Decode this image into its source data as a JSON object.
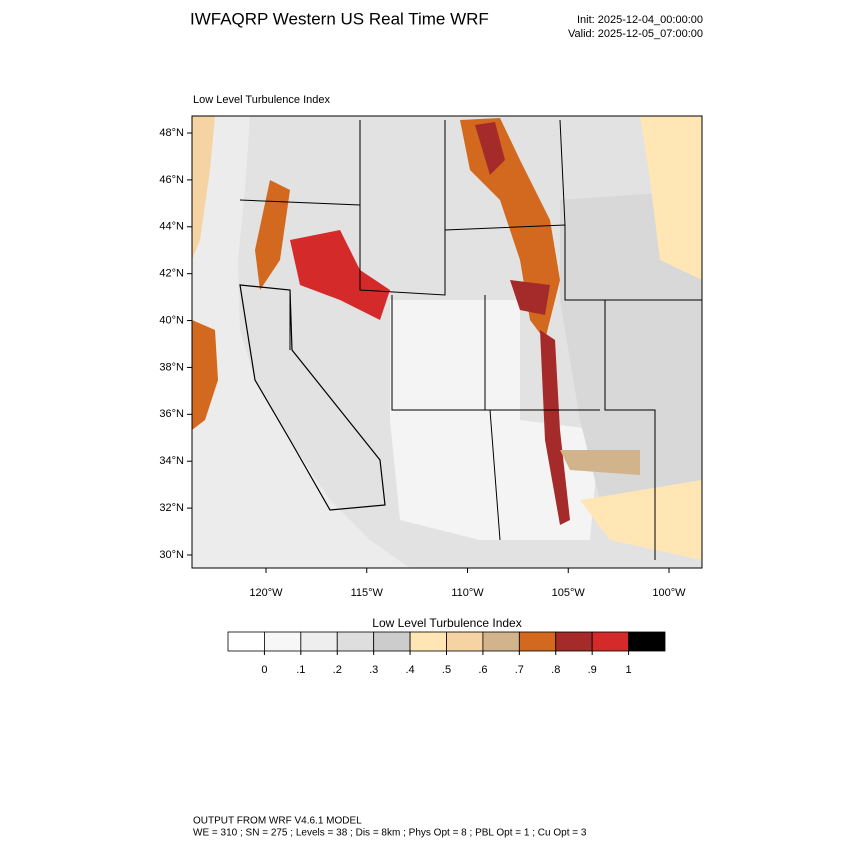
{
  "header": {
    "title": "IWFAQRP Western US Real Time WRF",
    "init": "Init: 2025-12-04_00:00:00",
    "valid": "Valid: 2025-12-05_07:00:00"
  },
  "map": {
    "title": "Low Level Turbulence Index",
    "lat_ticks": [
      {
        "value": 30,
        "label": "30°N"
      },
      {
        "value": 32,
        "label": "32°N"
      },
      {
        "value": 34,
        "label": "34°N"
      },
      {
        "value": 36,
        "label": "36°N"
      },
      {
        "value": 38,
        "label": "38°N"
      },
      {
        "value": 40,
        "label": "40°N"
      },
      {
        "value": 42,
        "label": "42°N"
      },
      {
        "value": 44,
        "label": "44°N"
      },
      {
        "value": 46,
        "label": "46°N"
      },
      {
        "value": 48,
        "label": "48°N"
      }
    ],
    "lon_ticks": [
      {
        "value": -120,
        "label": "120°W"
      },
      {
        "value": -115,
        "label": "115°W"
      },
      {
        "value": -110,
        "label": "110°W"
      },
      {
        "value": -105,
        "label": "105°W"
      },
      {
        "value": -100,
        "label": "100°W"
      }
    ]
  },
  "colorbar": {
    "title": "Low Level Turbulence Index",
    "colors": [
      "#ffffff",
      "#f7f7f7",
      "#eeeeee",
      "#dedede",
      "#cccccc",
      "#ffe6b4",
      "#f6d3a2",
      "#d2b48c",
      "#d2691e",
      "#a52a2a",
      "#d52a2a",
      "#000000"
    ],
    "ticks": [
      0,
      {
        "value": 0.1,
        "label": ".1"
      },
      {
        "value": 0.2,
        "label": ".2"
      },
      {
        "value": 0.3,
        "label": ".3"
      },
      {
        "value": 0.4,
        "label": ".4"
      },
      {
        "value": 0.5,
        "label": ".5"
      },
      {
        "value": 0.6,
        "label": ".6"
      },
      {
        "value": 0.7,
        "label": ".7"
      },
      {
        "value": 0.8,
        "label": ".8"
      },
      {
        "value": 0.9,
        "label": ".9"
      },
      1
    ]
  },
  "footer": {
    "line1": "OUTPUT FROM WRF V4.6.1 MODEL",
    "line2": "WE = 310 ; SN = 275 ; Levels = 38 ; Dis = 8km ; Phys Opt = 8 ; PBL Opt = 1 ; Cu Opt = 3"
  }
}
